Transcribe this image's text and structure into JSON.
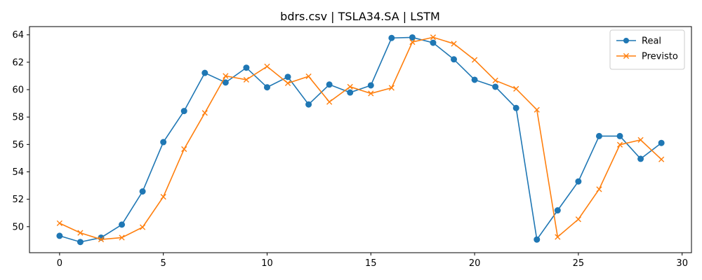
{
  "chart_data": {
    "type": "line",
    "title": "bdrs.csv | TSLA34.SA | LSTM",
    "xlabel": "",
    "ylabel": "",
    "xlim": [
      -1.45,
      30.45
    ],
    "ylim": [
      48.1,
      64.6
    ],
    "x_ticks": [
      0,
      5,
      10,
      15,
      20,
      25,
      30
    ],
    "y_ticks": [
      50,
      52,
      54,
      56,
      58,
      60,
      62,
      64
    ],
    "grid": false,
    "legend_position": "top-right",
    "x": [
      0,
      1,
      2,
      3,
      4,
      5,
      6,
      7,
      8,
      9,
      10,
      11,
      12,
      13,
      14,
      15,
      16,
      17,
      18,
      19,
      20,
      21,
      22,
      23,
      24,
      25,
      26,
      27,
      28,
      29
    ],
    "series": [
      {
        "name": "Real",
        "color": "#1f77b4",
        "marker": "circle",
        "values": [
          49.33,
          48.88,
          49.2,
          50.15,
          52.57,
          56.17,
          58.44,
          61.22,
          60.52,
          61.6,
          60.17,
          60.93,
          58.92,
          60.37,
          59.79,
          60.31,
          63.77,
          63.81,
          63.42,
          62.21,
          60.72,
          60.21,
          58.66,
          49.06,
          51.19,
          53.3,
          56.61,
          56.61,
          54.95,
          56.11
        ]
      },
      {
        "name": "Previsto",
        "color": "#ff7f0e",
        "marker": "x",
        "values": [
          50.25,
          49.55,
          49.07,
          49.2,
          49.96,
          52.18,
          55.66,
          58.3,
          61.0,
          60.72,
          61.69,
          60.47,
          60.97,
          59.1,
          60.21,
          59.72,
          60.13,
          63.47,
          63.82,
          63.35,
          62.17,
          60.67,
          60.06,
          58.53,
          49.25,
          50.54,
          52.73,
          55.98,
          56.33,
          54.91
        ]
      }
    ]
  }
}
